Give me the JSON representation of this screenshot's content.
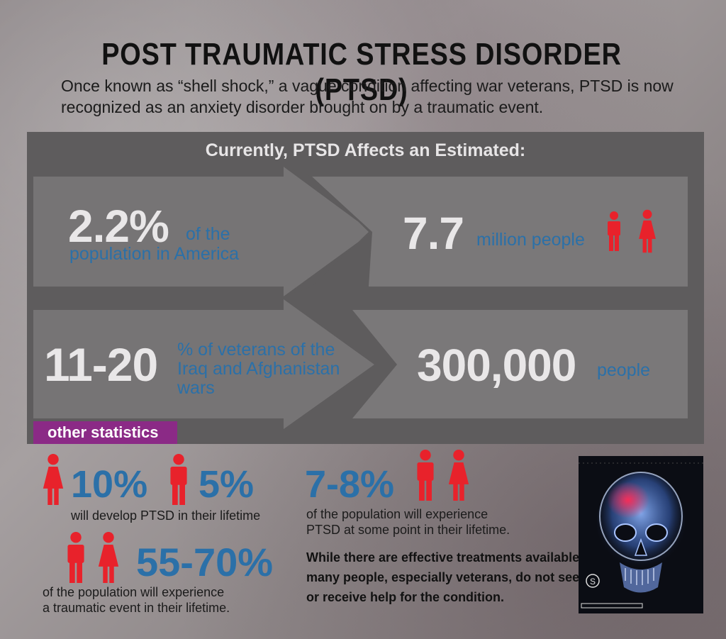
{
  "header": {
    "title": "POST TRAUMATIC STRESS DISORDER (PTSD)",
    "intro_line1": "Once known as “shell shock,” a vague condition affecting war veterans, PTSD is now",
    "intro_line2": "recognized as an anxiety disorder brought on by a traumatic event."
  },
  "panel": {
    "heading": "Currently, PTSD Affects an Estimated:",
    "row1": {
      "left_value": "2.2%",
      "left_text1": "of the",
      "left_text2": "population in America",
      "right_value": "7.7",
      "right_text": "million people"
    },
    "row2": {
      "left_value": "11-20",
      "left_text1": "% of veterans of the",
      "left_text2": "Iraq and Afghanistan",
      "left_text3": "wars",
      "right_value": "300,000",
      "right_text": "people"
    }
  },
  "other": {
    "tag": "other statistics",
    "women_pct": "10%",
    "men_pct": "5%",
    "lifetime_text": "will develop PTSD in their lifetime",
    "trauma_pct": "55-70%",
    "trauma_text1": "of the population will experience",
    "trauma_text2": "a traumatic event in their lifetime.",
    "pop_pct": "7-8%",
    "pop_text1": "of the population will experience",
    "pop_text2": "PTSD at some point in their lifetime.",
    "note1": "While there are effective treatments available,",
    "note2": "many people, especially veterans, do not seek",
    "note3": "or receive help for the condition."
  },
  "xray": {
    "marker": "S"
  },
  "colors": {
    "accent_blue": "#2b70a8",
    "icon_red": "#e8222b",
    "tag_purple": "#8b2a86",
    "panel_gray": "#5e5c5d"
  }
}
